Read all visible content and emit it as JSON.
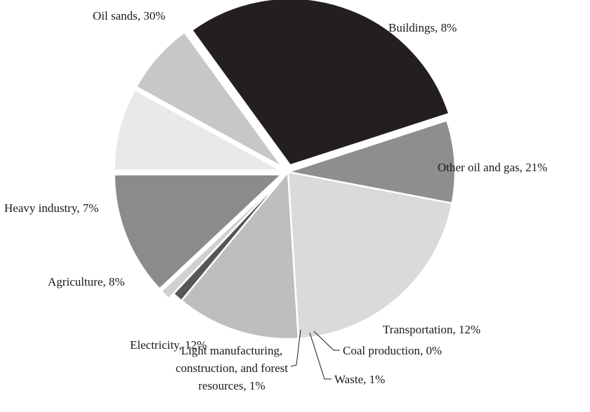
{
  "chart_data": {
    "type": "pie",
    "title": "",
    "slices": [
      {
        "name": "Buildings",
        "value": 8,
        "label": "Buildings, 8%",
        "color": "#8d8e90"
      },
      {
        "name": "Other oil and gas",
        "value": 21,
        "label": "Other oil and gas, 21%",
        "color": "#d9dadb"
      },
      {
        "name": "Transportation",
        "value": 12,
        "label": "Transportation, 12%",
        "color": "#bdbebf"
      },
      {
        "name": "Coal production",
        "value": 0,
        "label": "Coal production, 0%",
        "color": "#c8c9ca"
      },
      {
        "name": "Waste",
        "value": 1,
        "label": "Waste, 1%",
        "color": "#555658"
      },
      {
        "name": "Light manufacturing, construction, and forest resources",
        "value": 1,
        "label": "Light manufacturing,\nconstruction, and forest\nresources, 1%",
        "color": "#cfd0d1"
      },
      {
        "name": "Electricity",
        "value": 12,
        "label": "Electricity, 12%",
        "color": "#8a8b8d"
      },
      {
        "name": "Agriculture",
        "value": 8,
        "label": "Agriculture, 8%",
        "color": "#e9e9ea"
      },
      {
        "name": "Heavy industry",
        "value": 7,
        "label": "Heavy industry, 7%",
        "color": "#c6c7c8"
      },
      {
        "name": "Oil sands",
        "value": 30,
        "label": "Oil sands, 30%",
        "color": "#231f20"
      }
    ],
    "exploded": [
      "Oil sands",
      "Electricity",
      "Agriculture",
      "Heavy industry",
      "Light manufacturing, construction, and forest resources"
    ]
  }
}
